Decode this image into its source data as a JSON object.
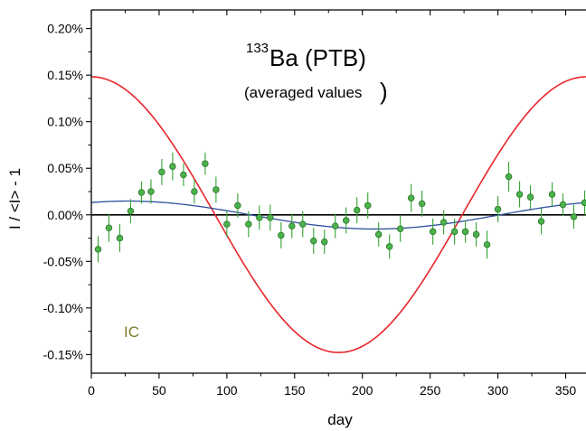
{
  "chart_data": {
    "type": "scatter",
    "title_sup": "133",
    "title_main": "Ba (PTB)",
    "subtitle_text": "(averaged values",
    "subtitle_close": ")",
    "annotation": "IC",
    "xlabel": "day",
    "ylabel": "I / <I> - 1",
    "xlim": [
      0,
      365
    ],
    "ylim": [
      -0.0017,
      0.0022
    ],
    "grid": false,
    "x_ticks": [
      0,
      50,
      100,
      150,
      200,
      250,
      300,
      350
    ],
    "x_tick_labels": [
      "0",
      "50",
      "100",
      "150",
      "200",
      "250",
      "300",
      "350"
    ],
    "y_ticks": [
      -0.0015,
      -0.001,
      -0.0005,
      0,
      0.0005,
      0.001,
      0.0015,
      0.002
    ],
    "y_tick_labels": [
      "-0.15%",
      "-0.10%",
      "-0.05%",
      "0.00%",
      "0.05%",
      "0.10%",
      "0.15%",
      "0.20%"
    ],
    "colors": {
      "points_fill": "#4cb24c",
      "points_edge": "#2e7d2e",
      "error_bars": "#33a333",
      "red_curve": "#e8262b",
      "blue_curve": "#2e4f9e",
      "zero_line": "#000000",
      "annotation": "#7a7a2a"
    },
    "series": [
      {
        "type": "points_with_errors",
        "x": [
          5,
          13,
          21,
          29,
          37,
          44,
          52,
          60,
          68,
          76,
          84,
          92,
          100,
          108,
          116,
          124,
          132,
          140,
          148,
          156,
          164,
          172,
          180,
          188,
          196,
          204,
          212,
          220,
          228,
          236,
          244,
          252,
          260,
          268,
          276,
          284,
          292,
          300,
          308,
          316,
          324,
          332,
          340,
          348,
          356,
          364
        ],
        "y": [
          -0.00037,
          -0.00014,
          -0.00025,
          4e-05,
          0.00024,
          0.00025,
          0.00046,
          0.00052,
          0.00043,
          0.00025,
          0.00055,
          0.00027,
          -0.0001,
          0.0001,
          -0.0001,
          -3e-05,
          -3e-05,
          -0.00022,
          -0.00012,
          -0.0001,
          -0.00028,
          -0.00029,
          -0.00012,
          -6e-05,
          5e-05,
          0.0001,
          -0.00021,
          -0.00034,
          -0.00015,
          0.00018,
          0.00012,
          -0.00018,
          -8e-05,
          -0.00018,
          -0.00018,
          -0.00021,
          -0.00032,
          6e-05,
          0.00041,
          0.00022,
          0.00019,
          -7e-05,
          0.00022,
          0.00011,
          -2e-05,
          0.00013
        ],
        "yerr": [
          0.00014,
          0.00015,
          0.00015,
          0.00013,
          0.00012,
          0.00013,
          0.00014,
          0.00015,
          0.00012,
          0.00013,
          0.00012,
          0.00014,
          0.00014,
          0.00013,
          0.00014,
          0.00013,
          0.00014,
          0.00014,
          0.00013,
          0.00014,
          0.00014,
          0.00013,
          0.00013,
          0.00014,
          0.00014,
          0.00014,
          0.00013,
          0.00013,
          0.00014,
          0.00015,
          0.00014,
          0.00014,
          0.00013,
          0.00014,
          0.00012,
          0.00013,
          0.00015,
          0.00014,
          0.00016,
          0.00014,
          0.00013,
          0.00014,
          0.00013,
          0.00012,
          0.00013,
          0.00013
        ]
      },
      {
        "type": "cosine_curve",
        "color_key": "red_curve",
        "amplitude": 0.00148,
        "offset": 2e-06,
        "phase_day": 0,
        "period": 365
      },
      {
        "type": "cosine_curve",
        "color_key": "blue_curve",
        "amplitude": 0.00015,
        "offset": -2e-06,
        "phase_day": 27,
        "period": 365
      }
    ]
  }
}
